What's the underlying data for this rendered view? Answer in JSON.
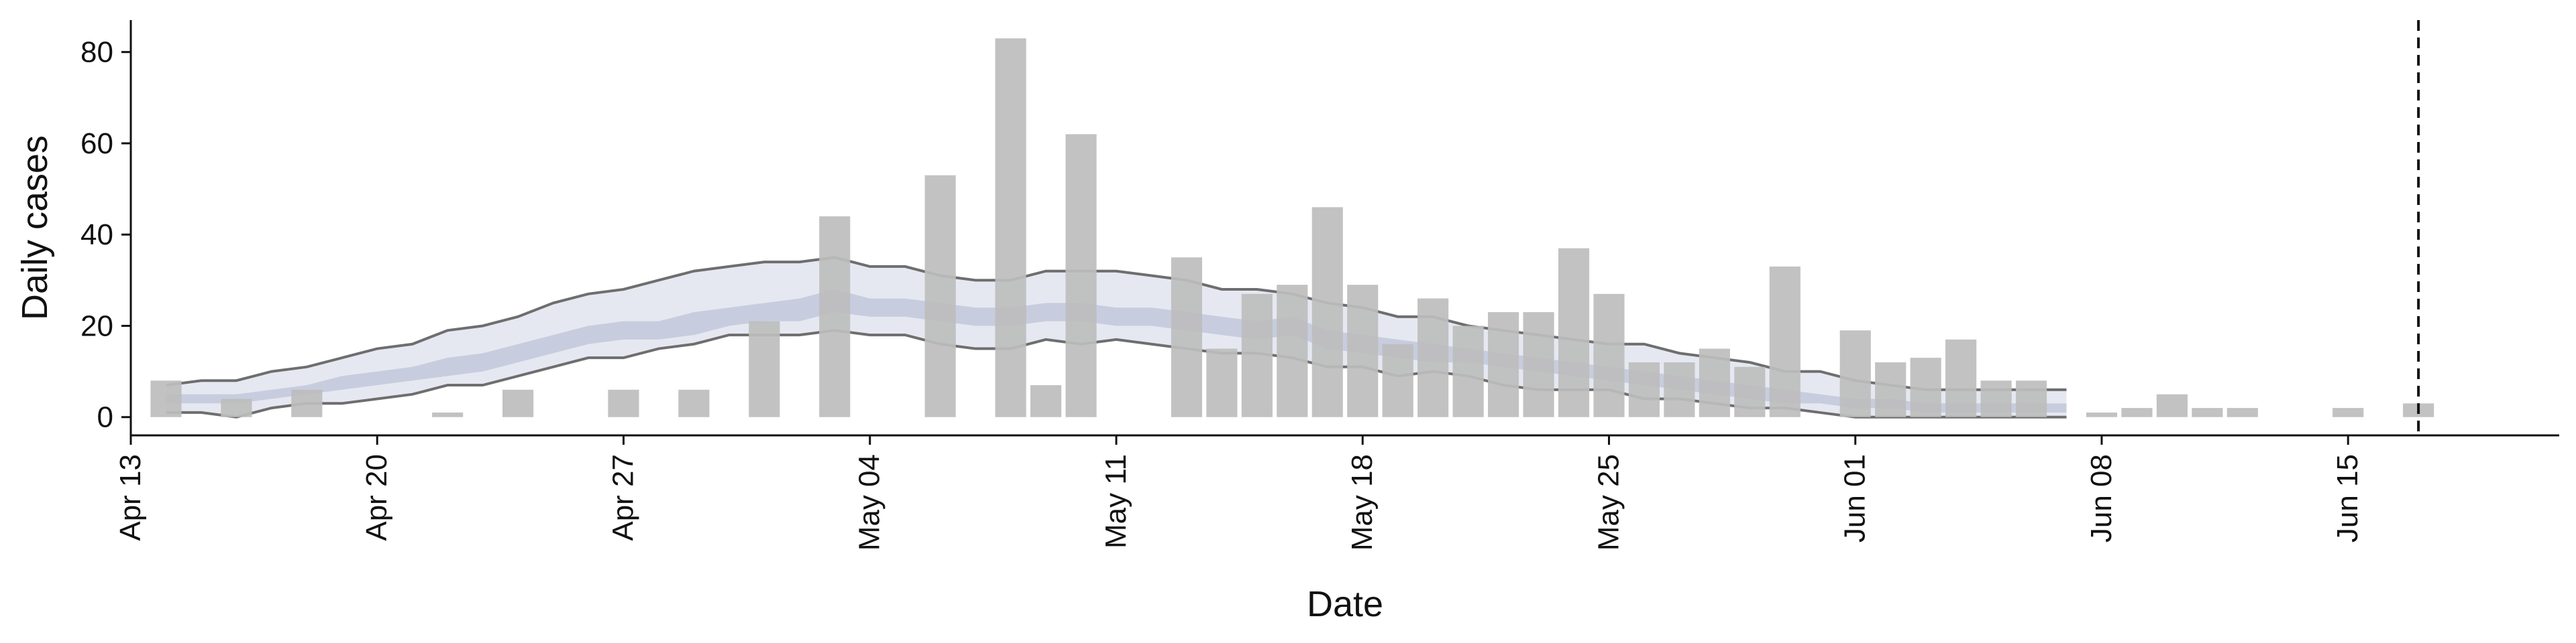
{
  "chart_data": {
    "type": "bar",
    "title": "",
    "xlabel": "Date",
    "ylabel": "Daily cases",
    "x_ticks": [
      "Apr 13",
      "Apr 20",
      "Apr 27",
      "May 04",
      "May 11",
      "May 18",
      "May 25",
      "Jun 01",
      "Jun 08",
      "Jun 15"
    ],
    "x_tick_dates": [
      "2020-04-13",
      "2020-04-20",
      "2020-04-27",
      "2020-05-04",
      "2020-05-11",
      "2020-05-18",
      "2020-05-25",
      "2020-06-01",
      "2020-06-08",
      "2020-06-15"
    ],
    "y_ticks": [
      0,
      20,
      40,
      60,
      80
    ],
    "xlim": [
      "2020-04-13",
      "2020-06-21"
    ],
    "ylim": [
      -4,
      87
    ],
    "grid": false,
    "legend": "none",
    "vertical_line_date": "2020-06-17",
    "series": [
      {
        "type": "bar",
        "color": "#bdbdbd",
        "points": [
          [
            "2020-04-14",
            8
          ],
          [
            "2020-04-16",
            4
          ],
          [
            "2020-04-18",
            6
          ],
          [
            "2020-04-22",
            1
          ],
          [
            "2020-04-24",
            6
          ],
          [
            "2020-04-27",
            6
          ],
          [
            "2020-04-29",
            6
          ],
          [
            "2020-05-01",
            21
          ],
          [
            "2020-05-03",
            44
          ],
          [
            "2020-05-06",
            53
          ],
          [
            "2020-05-08",
            83
          ],
          [
            "2020-05-09",
            7
          ],
          [
            "2020-05-10",
            62
          ],
          [
            "2020-05-13",
            35
          ],
          [
            "2020-05-14",
            15
          ],
          [
            "2020-05-15",
            27
          ],
          [
            "2020-05-16",
            29
          ],
          [
            "2020-05-17",
            46
          ],
          [
            "2020-05-18",
            29
          ],
          [
            "2020-05-19",
            16
          ],
          [
            "2020-05-20",
            26
          ],
          [
            "2020-05-21",
            20
          ],
          [
            "2020-05-22",
            23
          ],
          [
            "2020-05-23",
            23
          ],
          [
            "2020-05-24",
            37
          ],
          [
            "2020-05-25",
            27
          ],
          [
            "2020-05-26",
            12
          ],
          [
            "2020-05-27",
            12
          ],
          [
            "2020-05-28",
            15
          ],
          [
            "2020-05-29",
            11
          ],
          [
            "2020-05-30",
            33
          ],
          [
            "2020-06-01",
            19
          ],
          [
            "2020-06-02",
            12
          ],
          [
            "2020-06-03",
            13
          ],
          [
            "2020-06-04",
            17
          ],
          [
            "2020-06-05",
            8
          ],
          [
            "2020-06-06",
            8
          ],
          [
            "2020-06-08",
            1
          ],
          [
            "2020-06-09",
            2
          ],
          [
            "2020-06-10",
            5
          ],
          [
            "2020-06-11",
            2
          ],
          [
            "2020-06-12",
            2
          ],
          [
            "2020-06-15",
            2
          ],
          [
            "2020-06-17",
            3
          ]
        ]
      },
      {
        "type": "ribbon-outer",
        "color": "#e6e8f1",
        "edge_color": "#6e6e6e",
        "dates": [
          "2020-04-14",
          "2020-04-15",
          "2020-04-16",
          "2020-04-17",
          "2020-04-18",
          "2020-04-19",
          "2020-04-20",
          "2020-04-21",
          "2020-04-22",
          "2020-04-23",
          "2020-04-24",
          "2020-04-25",
          "2020-04-26",
          "2020-04-27",
          "2020-04-28",
          "2020-04-29",
          "2020-04-30",
          "2020-05-01",
          "2020-05-02",
          "2020-05-03",
          "2020-05-04",
          "2020-05-05",
          "2020-05-06",
          "2020-05-07",
          "2020-05-08",
          "2020-05-09",
          "2020-05-10",
          "2020-05-11",
          "2020-05-12",
          "2020-05-13",
          "2020-05-14",
          "2020-05-15",
          "2020-05-16",
          "2020-05-17",
          "2020-05-18",
          "2020-05-19",
          "2020-05-20",
          "2020-05-21",
          "2020-05-22",
          "2020-05-23",
          "2020-05-24",
          "2020-05-25",
          "2020-05-26",
          "2020-05-27",
          "2020-05-28",
          "2020-05-29",
          "2020-05-30",
          "2020-05-31",
          "2020-06-01",
          "2020-06-02",
          "2020-06-03",
          "2020-06-04",
          "2020-06-05",
          "2020-06-06",
          "2020-06-07"
        ],
        "upper": [
          7,
          8,
          8,
          10,
          11,
          13,
          15,
          16,
          19,
          20,
          22,
          25,
          27,
          28,
          30,
          32,
          33,
          34,
          34,
          35,
          33,
          33,
          31,
          30,
          30,
          32,
          32,
          32,
          31,
          30,
          28,
          28,
          27,
          25,
          24,
          22,
          22,
          20,
          19,
          18,
          17,
          16,
          16,
          14,
          13,
          12,
          10,
          10,
          8,
          7,
          6,
          6,
          6,
          6,
          6
        ],
        "lower": [
          1,
          1,
          0,
          2,
          3,
          3,
          4,
          5,
          7,
          7,
          9,
          11,
          13,
          13,
          15,
          16,
          18,
          18,
          18,
          19,
          18,
          18,
          16,
          15,
          15,
          17,
          16,
          17,
          16,
          15,
          14,
          14,
          13,
          11,
          11,
          9,
          10,
          9,
          7,
          6,
          6,
          6,
          4,
          4,
          3,
          2,
          2,
          1,
          0,
          0,
          0,
          0,
          0,
          0,
          0
        ]
      },
      {
        "type": "ribbon-inner",
        "color": "#c3cadb",
        "dates": [
          "2020-04-14",
          "2020-04-15",
          "2020-04-16",
          "2020-04-17",
          "2020-04-18",
          "2020-04-19",
          "2020-04-20",
          "2020-04-21",
          "2020-04-22",
          "2020-04-23",
          "2020-04-24",
          "2020-04-25",
          "2020-04-26",
          "2020-04-27",
          "2020-04-28",
          "2020-04-29",
          "2020-04-30",
          "2020-05-01",
          "2020-05-02",
          "2020-05-03",
          "2020-05-04",
          "2020-05-05",
          "2020-05-06",
          "2020-05-07",
          "2020-05-08",
          "2020-05-09",
          "2020-05-10",
          "2020-05-11",
          "2020-05-12",
          "2020-05-13",
          "2020-05-14",
          "2020-05-15",
          "2020-05-16",
          "2020-05-17",
          "2020-05-18",
          "2020-05-19",
          "2020-05-20",
          "2020-05-21",
          "2020-05-22",
          "2020-05-23",
          "2020-05-24",
          "2020-05-25",
          "2020-05-26",
          "2020-05-27",
          "2020-05-28",
          "2020-05-29",
          "2020-05-30",
          "2020-05-31",
          "2020-06-01",
          "2020-06-02",
          "2020-06-03",
          "2020-06-04",
          "2020-06-05",
          "2020-06-06",
          "2020-06-07"
        ],
        "upper": [
          5,
          5,
          5,
          6,
          7,
          9,
          10,
          11,
          13,
          14,
          16,
          18,
          20,
          21,
          21,
          23,
          24,
          25,
          26,
          28,
          26,
          26,
          25,
          24,
          24,
          25,
          25,
          24,
          24,
          23,
          22,
          21,
          22,
          19,
          18,
          17,
          16,
          15,
          14,
          13,
          12,
          11,
          10,
          9,
          8,
          7,
          6,
          5,
          4,
          4,
          3,
          3,
          3,
          3,
          3
        ],
        "lower": [
          3,
          3,
          3,
          4,
          5,
          6,
          7,
          8,
          9,
          10,
          12,
          14,
          16,
          17,
          17,
          18,
          20,
          21,
          21,
          23,
          22,
          22,
          21,
          20,
          20,
          21,
          21,
          20,
          20,
          19,
          18,
          17,
          18,
          15,
          14,
          13,
          12,
          12,
          11,
          10,
          9,
          8,
          7,
          6,
          5,
          4,
          3,
          3,
          2,
          2,
          1,
          1,
          1,
          1,
          1
        ]
      }
    ]
  }
}
